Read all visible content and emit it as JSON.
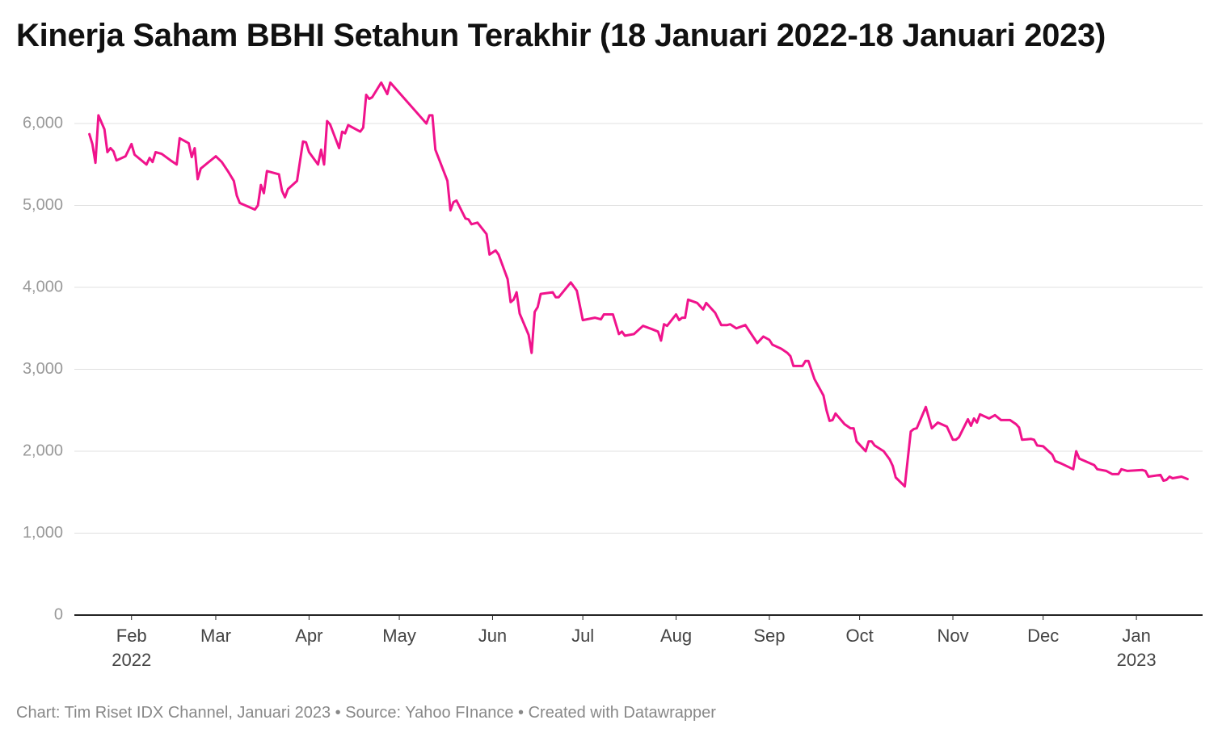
{
  "chart_data": {
    "type": "line",
    "title": "Kinerja Saham BBHI Setahun Terakhir (18 Januari 2022-18 Januari 2023)",
    "footer": "Chart: Tim Riset IDX Channel, Januari 2023 • Source: Yahoo FInance • Created with Datawrapper",
    "color": "#f0138c",
    "grid": true,
    "x": [
      "2022-01-18",
      "2022-01-19",
      "2022-01-20",
      "2022-01-21",
      "2022-01-23",
      "2022-01-24",
      "2022-01-25",
      "2022-01-26",
      "2022-01-27",
      "2022-01-30",
      "2022-02-01",
      "2022-02-02",
      "2022-02-06",
      "2022-02-07",
      "2022-02-08",
      "2022-02-09",
      "2022-02-11",
      "2022-02-14",
      "2022-02-16",
      "2022-02-17",
      "2022-02-20",
      "2022-02-21",
      "2022-02-22",
      "2022-02-23",
      "2022-02-24",
      "2022-03-01",
      "2022-03-03",
      "2022-03-05",
      "2022-03-07",
      "2022-03-08",
      "2022-03-09",
      "2022-03-14",
      "2022-03-15",
      "2022-03-16",
      "2022-03-17",
      "2022-03-18",
      "2022-03-22",
      "2022-03-23",
      "2022-03-24",
      "2022-03-25",
      "2022-03-28",
      "2022-03-30",
      "2022-03-31",
      "2022-04-01",
      "2022-04-04",
      "2022-04-05",
      "2022-04-06",
      "2022-04-07",
      "2022-04-08",
      "2022-04-11",
      "2022-04-12",
      "2022-04-13",
      "2022-04-14",
      "2022-04-18",
      "2022-04-19",
      "2022-04-20",
      "2022-04-21",
      "2022-04-22",
      "2022-04-25",
      "2022-04-27",
      "2022-04-28",
      "2022-05-10",
      "2022-05-11",
      "2022-05-12",
      "2022-05-13",
      "2022-05-17",
      "2022-05-18",
      "2022-05-19",
      "2022-05-20",
      "2022-05-23",
      "2022-05-24",
      "2022-05-25",
      "2022-05-27",
      "2022-05-30",
      "2022-05-31",
      "2022-06-02",
      "2022-06-03",
      "2022-06-06",
      "2022-06-07",
      "2022-06-08",
      "2022-06-09",
      "2022-06-10",
      "2022-06-13",
      "2022-06-14",
      "2022-06-15",
      "2022-06-16",
      "2022-06-17",
      "2022-06-21",
      "2022-06-22",
      "2022-06-23",
      "2022-06-27",
      "2022-06-29",
      "2022-07-01",
      "2022-07-05",
      "2022-07-07",
      "2022-07-08",
      "2022-07-11",
      "2022-07-13",
      "2022-07-14",
      "2022-07-15",
      "2022-07-18",
      "2022-07-21",
      "2022-07-24",
      "2022-07-26",
      "2022-07-27",
      "2022-07-28",
      "2022-07-29",
      "2022-08-01",
      "2022-08-02",
      "2022-08-03",
      "2022-08-04",
      "2022-08-05",
      "2022-08-08",
      "2022-08-10",
      "2022-08-11",
      "2022-08-14",
      "2022-08-16",
      "2022-08-18",
      "2022-08-19",
      "2022-08-21",
      "2022-08-24",
      "2022-08-28",
      "2022-08-30",
      "2022-09-01",
      "2022-09-02",
      "2022-09-05",
      "2022-09-07",
      "2022-09-08",
      "2022-09-09",
      "2022-09-12",
      "2022-09-13",
      "2022-09-14",
      "2022-09-16",
      "2022-09-19",
      "2022-09-20",
      "2022-09-21",
      "2022-09-22",
      "2022-09-23",
      "2022-09-26",
      "2022-09-28",
      "2022-09-29",
      "2022-09-30",
      "2022-10-03",
      "2022-10-04",
      "2022-10-05",
      "2022-10-06",
      "2022-10-09",
      "2022-10-11",
      "2022-10-12",
      "2022-10-13",
      "2022-10-16",
      "2022-10-18",
      "2022-10-19",
      "2022-10-20",
      "2022-10-23",
      "2022-10-25",
      "2022-10-27",
      "2022-10-30",
      "2022-11-01",
      "2022-11-02",
      "2022-11-03",
      "2022-11-06",
      "2022-11-07",
      "2022-11-08",
      "2022-11-09",
      "2022-11-10",
      "2022-11-13",
      "2022-11-15",
      "2022-11-17",
      "2022-11-20",
      "2022-11-22",
      "2022-11-23",
      "2022-11-24",
      "2022-11-27",
      "2022-11-28",
      "2022-11-29",
      "2022-12-01",
      "2022-12-04",
      "2022-12-05",
      "2022-12-07",
      "2022-12-11",
      "2022-12-12",
      "2022-12-13",
      "2022-12-18",
      "2022-12-19",
      "2022-12-22",
      "2022-12-24",
      "2022-12-26",
      "2022-12-27",
      "2022-12-29",
      "2023-01-03",
      "2023-01-04",
      "2023-01-05",
      "2023-01-09",
      "2023-01-10",
      "2023-01-11",
      "2023-01-12",
      "2023-01-13",
      "2023-01-16",
      "2023-01-18"
    ],
    "values": [
      5870,
      5750,
      5520,
      6100,
      5930,
      5650,
      5700,
      5660,
      5550,
      5600,
      5750,
      5620,
      5500,
      5580,
      5530,
      5650,
      5630,
      5550,
      5500,
      5820,
      5760,
      5590,
      5700,
      5320,
      5450,
      5600,
      5530,
      5420,
      5300,
      5120,
      5030,
      4950,
      5000,
      5250,
      5150,
      5420,
      5380,
      5180,
      5100,
      5200,
      5300,
      5780,
      5770,
      5650,
      5500,
      5680,
      5500,
      6030,
      5990,
      5700,
      5900,
      5880,
      5980,
      5900,
      5950,
      6350,
      6300,
      6320,
      6500,
      6360,
      6500,
      6000,
      6100,
      6100,
      5680,
      5300,
      4940,
      5040,
      5060,
      4840,
      4830,
      4770,
      4790,
      4650,
      4400,
      4450,
      4400,
      4100,
      3820,
      3850,
      3940,
      3680,
      3420,
      3200,
      3700,
      3760,
      3920,
      3940,
      3880,
      3880,
      4060,
      3960,
      3600,
      3630,
      3610,
      3670,
      3670,
      3430,
      3460,
      3410,
      3430,
      3530,
      3490,
      3460,
      3350,
      3550,
      3530,
      3670,
      3600,
      3630,
      3630,
      3850,
      3810,
      3730,
      3810,
      3690,
      3540,
      3540,
      3550,
      3500,
      3540,
      3320,
      3400,
      3360,
      3300,
      3250,
      3200,
      3160,
      3040,
      3040,
      3100,
      3100,
      2880,
      2680,
      2500,
      2370,
      2380,
      2460,
      2330,
      2280,
      2280,
      2120,
      2000,
      2120,
      2120,
      2070,
      2000,
      1900,
      1820,
      1680,
      1570,
      2240,
      2270,
      2280,
      2540,
      2280,
      2350,
      2300,
      2140,
      2140,
      2170,
      2390,
      2310,
      2400,
      2350,
      2450,
      2400,
      2440,
      2380,
      2380,
      2330,
      2290,
      2140,
      2150,
      2140,
      2070,
      2060,
      1960,
      1880,
      1850,
      1780,
      2000,
      1910,
      1830,
      1780,
      1760,
      1720,
      1720,
      1780,
      1760,
      1770,
      1760,
      1690,
      1710,
      1640,
      1650,
      1690,
      1670,
      1690,
      1660
    ],
    "xlim": [
      "2022-01-13",
      "2023-01-23"
    ],
    "xticks": [
      {
        "value": "2022-02-01",
        "label": "Feb\n2022"
      },
      {
        "value": "2022-03-01",
        "label": "Mar"
      },
      {
        "value": "2022-04-01",
        "label": "Apr"
      },
      {
        "value": "2022-05-01",
        "label": "May"
      },
      {
        "value": "2022-06-01",
        "label": "Jun"
      },
      {
        "value": "2022-07-01",
        "label": "Jul"
      },
      {
        "value": "2022-08-01",
        "label": "Aug"
      },
      {
        "value": "2022-09-01",
        "label": "Sep"
      },
      {
        "value": "2022-10-01",
        "label": "Oct"
      },
      {
        "value": "2022-11-01",
        "label": "Nov"
      },
      {
        "value": "2022-12-01",
        "label": "Dec"
      },
      {
        "value": "2023-01-01",
        "label": "Jan\n2023"
      }
    ],
    "ylim": [
      0,
      7000
    ],
    "yticks": [
      0,
      {
        "value": 1000,
        "label": "1,000"
      },
      {
        "value": 2000,
        "label": "2,000"
      },
      {
        "value": 3000,
        "label": "3,000"
      },
      {
        "value": 4000,
        "label": "4,000"
      },
      {
        "value": 5000,
        "label": "5,000"
      },
      {
        "value": 6000,
        "label": "6,000"
      }
    ]
  }
}
